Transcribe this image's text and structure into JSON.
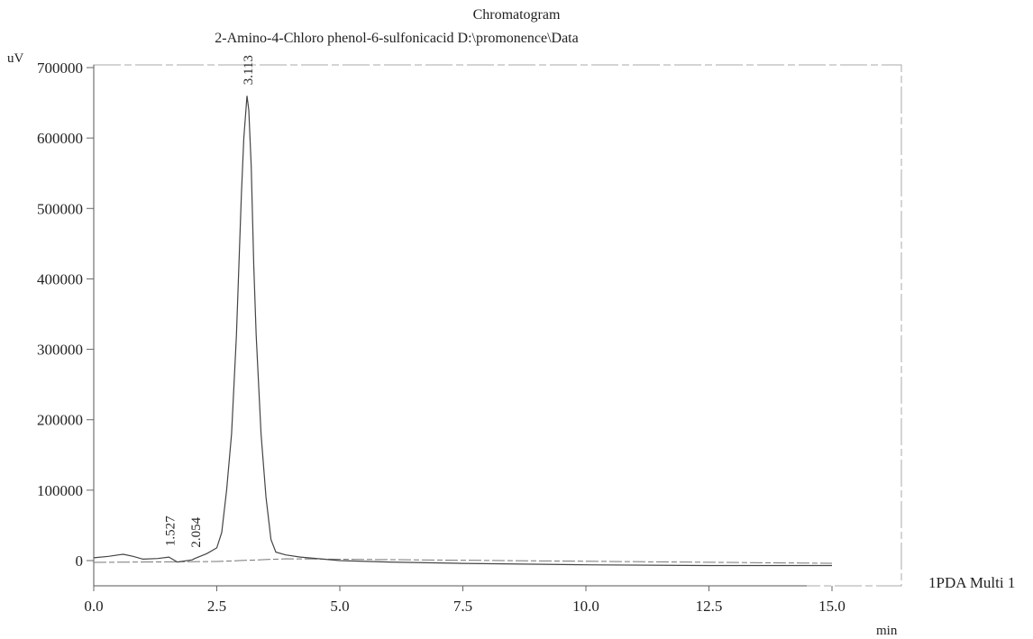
{
  "chart_data": {
    "type": "line",
    "title": "Chromatogram",
    "subtitle": "2-Amino-4-Chloro phenol-6-sulfonicacid D:\\promonence\\Data",
    "ylabel": "uV",
    "xlabel": "min",
    "xlim": [
      0,
      15
    ],
    "ylim": [
      -40000,
      700000
    ],
    "x_ticks": [
      "0.0",
      "2.5",
      "5.0",
      "7.5",
      "10.0",
      "12.5",
      "15.0"
    ],
    "y_ticks": [
      "700000",
      "600000",
      "500000",
      "400000",
      "300000",
      "200000",
      "100000",
      "0"
    ],
    "y_tick_values": [
      700000,
      600000,
      500000,
      400000,
      300000,
      200000,
      100000,
      0
    ],
    "x_tick_values": [
      0,
      2.5,
      5,
      7.5,
      10,
      12.5,
      15
    ],
    "series": [
      {
        "name": "1PDA Multi 1",
        "x": [
          0.0,
          0.3,
          0.5,
          0.6,
          0.8,
          1.0,
          1.3,
          1.527,
          1.7,
          2.0,
          2.054,
          2.3,
          2.5,
          2.6,
          2.7,
          2.8,
          2.9,
          3.0,
          3.05,
          3.113,
          3.15,
          3.2,
          3.25,
          3.3,
          3.4,
          3.5,
          3.6,
          3.7,
          3.9,
          4.2,
          5.0,
          6.0,
          7.5,
          10.0,
          12.5,
          15.0
        ],
        "y": [
          4000,
          6000,
          8000,
          9000,
          6000,
          2000,
          3000,
          5000,
          -2000,
          1000,
          3000,
          10000,
          18000,
          40000,
          100000,
          180000,
          320000,
          520000,
          600000,
          660000,
          640000,
          560000,
          420000,
          320000,
          180000,
          90000,
          30000,
          12000,
          8000,
          5000,
          0,
          -2000,
          -4000,
          -6000,
          -7000,
          -7000
        ]
      }
    ],
    "peaks": [
      {
        "label": "1.527",
        "x": 1.527,
        "y": 5000
      },
      {
        "label": "2.054",
        "x": 2.054,
        "y": 3000
      },
      {
        "label": "3.113",
        "x": 3.113,
        "y": 660000
      }
    ],
    "legend": "1PDA Multi 1",
    "legend_position": "right",
    "grid": false
  }
}
